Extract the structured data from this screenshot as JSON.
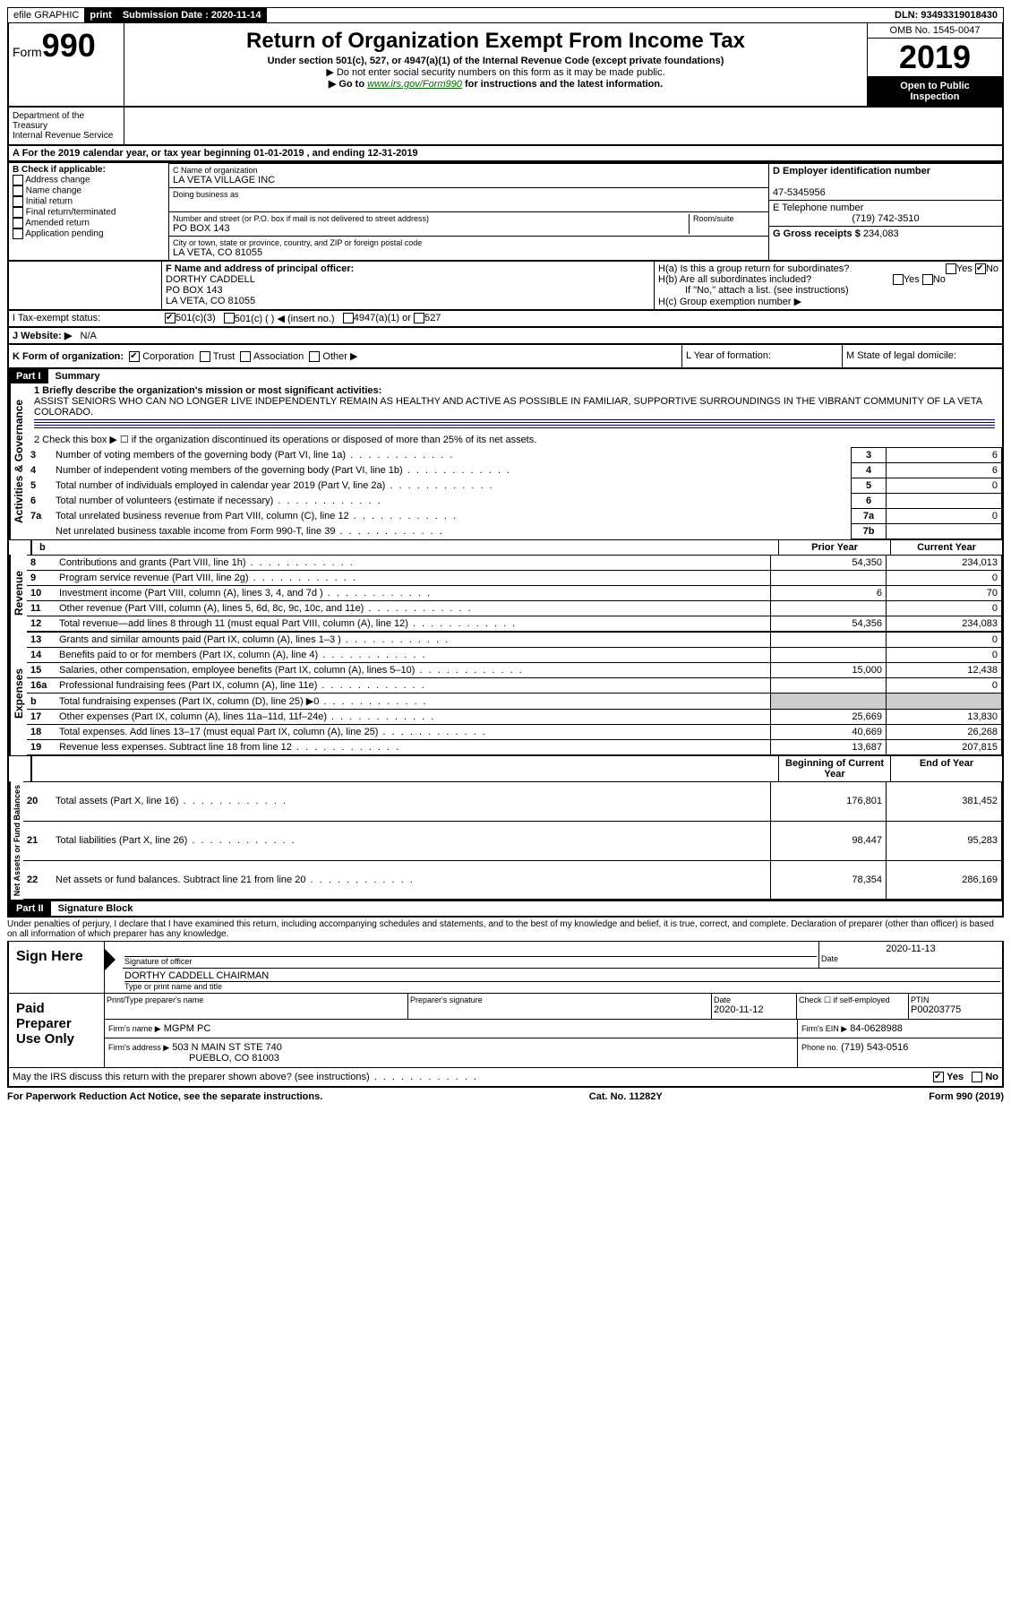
{
  "topbar": {
    "efile": "efile GRAPHIC",
    "print": "print",
    "submission_label": "Submission Date :",
    "submission_date": "2020-11-14",
    "dln_label": "DLN:",
    "dln": "93493319018430"
  },
  "header": {
    "form_prefix": "Form",
    "form_number": "990",
    "title": "Return of Organization Exempt From Income Tax",
    "subtitle": "Under section 501(c), 527, or 4947(a)(1) of the Internal Revenue Code (except private foundations)",
    "note1": "▶ Do not enter social security numbers on this form as it may be made public.",
    "note2_pre": "▶ Go to ",
    "note2_link": "www.irs.gov/Form990",
    "note2_post": " for instructions and the latest information.",
    "omb": "OMB No. 1545-0047",
    "year": "2019",
    "open_public1": "Open to Public",
    "open_public2": "Inspection",
    "dept1": "Department of the Treasury",
    "dept2": "Internal Revenue Service"
  },
  "section_a": "A For the 2019 calendar year, or tax year beginning 01-01-2019  , and ending 12-31-2019",
  "section_b": {
    "label": "B Check if applicable:",
    "items": [
      "Address change",
      "Name change",
      "Initial return",
      "Final return/terminated",
      "Amended return",
      "Application pending"
    ]
  },
  "section_c": {
    "name_label": "C Name of organization",
    "name": "LA VETA VILLAGE INC",
    "dba_label": "Doing business as",
    "addr_label": "Number and street (or P.O. box if mail is not delivered to street address)",
    "room_label": "Room/suite",
    "addr": "PO BOX 143",
    "city_label": "City or town, state or province, country, and ZIP or foreign postal code",
    "city": "LA VETA, CO  81055"
  },
  "section_d": {
    "label": "D Employer identification number",
    "ein": "47-5345956"
  },
  "section_e": {
    "label": "E Telephone number",
    "phone": "(719) 742-3510"
  },
  "section_g": {
    "label": "G Gross receipts $",
    "amount": "234,083"
  },
  "section_f": {
    "label": "F Name and address of principal officer:",
    "name": "DORTHY CADDELL",
    "addr1": "PO BOX 143",
    "addr2": "LA VETA, CO  81055"
  },
  "section_h": {
    "ha": "H(a)  Is this a group return for subordinates?",
    "hb": "H(b)  Are all subordinates included?",
    "hb_note": "If \"No,\" attach a list. (see instructions)",
    "hc": "H(c)  Group exemption number ▶"
  },
  "section_i": {
    "label": "I   Tax-exempt status:",
    "opt1": "501(c)(3)",
    "opt2": "501(c) (   ) ◀ (insert no.)",
    "opt3": "4947(a)(1) or",
    "opt4": "527"
  },
  "section_j": {
    "label": "J   Website: ▶",
    "value": "N/A"
  },
  "section_k": {
    "label": "K Form of organization:",
    "corp": "Corporation",
    "trust": "Trust",
    "assoc": "Association",
    "other": "Other ▶"
  },
  "section_l": "L Year of formation:",
  "section_m": "M State of legal domicile:",
  "part1": {
    "header": "Part I",
    "title": "Summary",
    "line1_label": "1  Briefly describe the organization's mission or most significant activities:",
    "mission": "ASSIST SENIORS WHO CAN NO LONGER LIVE INDEPENDENTLY REMAIN AS HEALTHY AND ACTIVE AS POSSIBLE IN FAMILIAR, SUPPORTIVE SURROUNDINGS IN THE VIBRANT COMMUNITY OF LA VETA COLORADO.",
    "line2": "2   Check this box ▶ ☐  if the organization discontinued its operations or disposed of more than 25% of its net assets.",
    "sidebar_ag": "Activities & Governance",
    "sidebar_rev": "Revenue",
    "sidebar_exp": "Expenses",
    "sidebar_net": "Net Assets or Fund Balances",
    "rows_ag": [
      {
        "n": "3",
        "t": "Number of voting members of the governing body (Part VI, line 1a)",
        "box": "3",
        "v": "6"
      },
      {
        "n": "4",
        "t": "Number of independent voting members of the governing body (Part VI, line 1b)",
        "box": "4",
        "v": "6"
      },
      {
        "n": "5",
        "t": "Total number of individuals employed in calendar year 2019 (Part V, line 2a)",
        "box": "5",
        "v": "0"
      },
      {
        "n": "6",
        "t": "Total number of volunteers (estimate if necessary)",
        "box": "6",
        "v": ""
      },
      {
        "n": "7a",
        "t": "Total unrelated business revenue from Part VIII, column (C), line 12",
        "box": "7a",
        "v": "0"
      },
      {
        "n": "",
        "t": "Net unrelated business taxable income from Form 990-T, line 39",
        "box": "7b",
        "v": ""
      }
    ],
    "prior_year": "Prior Year",
    "current_year": "Current Year",
    "rows_rev": [
      {
        "n": "8",
        "t": "Contributions and grants (Part VIII, line 1h)",
        "py": "54,350",
        "cy": "234,013"
      },
      {
        "n": "9",
        "t": "Program service revenue (Part VIII, line 2g)",
        "py": "",
        "cy": "0"
      },
      {
        "n": "10",
        "t": "Investment income (Part VIII, column (A), lines 3, 4, and 7d )",
        "py": "6",
        "cy": "70"
      },
      {
        "n": "11",
        "t": "Other revenue (Part VIII, column (A), lines 5, 6d, 8c, 9c, 10c, and 11e)",
        "py": "",
        "cy": "0"
      },
      {
        "n": "12",
        "t": "Total revenue—add lines 8 through 11 (must equal Part VIII, column (A), line 12)",
        "py": "54,356",
        "cy": "234,083"
      }
    ],
    "rows_exp": [
      {
        "n": "13",
        "t": "Grants and similar amounts paid (Part IX, column (A), lines 1–3 )",
        "py": "",
        "cy": "0"
      },
      {
        "n": "14",
        "t": "Benefits paid to or for members (Part IX, column (A), line 4)",
        "py": "",
        "cy": "0"
      },
      {
        "n": "15",
        "t": "Salaries, other compensation, employee benefits (Part IX, column (A), lines 5–10)",
        "py": "15,000",
        "cy": "12,438"
      },
      {
        "n": "16a",
        "t": "Professional fundraising fees (Part IX, column (A), line 11e)",
        "py": "",
        "cy": "0"
      },
      {
        "n": "b",
        "t": "Total fundraising expenses (Part IX, column (D), line 25) ▶0",
        "py": "shaded",
        "cy": "shaded"
      },
      {
        "n": "17",
        "t": "Other expenses (Part IX, column (A), lines 11a–11d, 11f–24e)",
        "py": "25,669",
        "cy": "13,830"
      },
      {
        "n": "18",
        "t": "Total expenses. Add lines 13–17 (must equal Part IX, column (A), line 25)",
        "py": "40,669",
        "cy": "26,268"
      },
      {
        "n": "19",
        "t": "Revenue less expenses. Subtract line 18 from line 12",
        "py": "13,687",
        "cy": "207,815"
      }
    ],
    "begin_year": "Beginning of Current Year",
    "end_year": "End of Year",
    "rows_net": [
      {
        "n": "20",
        "t": "Total assets (Part X, line 16)",
        "py": "176,801",
        "cy": "381,452"
      },
      {
        "n": "21",
        "t": "Total liabilities (Part X, line 26)",
        "py": "98,447",
        "cy": "95,283"
      },
      {
        "n": "22",
        "t": "Net assets or fund balances. Subtract line 21 from line 20",
        "py": "78,354",
        "cy": "286,169"
      }
    ]
  },
  "part2": {
    "header": "Part II",
    "title": "Signature Block",
    "declaration": "Under penalties of perjury, I declare that I have examined this return, including accompanying schedules and statements, and to the best of my knowledge and belief, it is true, correct, and complete. Declaration of preparer (other than officer) is based on all information of which preparer has any knowledge.",
    "sign_here": "Sign Here",
    "sig_officer": "Signature of officer",
    "date_label": "Date",
    "sig_date": "2020-11-13",
    "officer_name": "DORTHY CADDELL  CHAIRMAN",
    "type_name": "Type or print name and title",
    "paid_preparer": "Paid Preparer Use Only",
    "print_name_label": "Print/Type preparer's name",
    "prep_sig_label": "Preparer's signature",
    "prep_date_label": "Date",
    "prep_date": "2020-11-12",
    "check_self": "Check ☐  if self-employed",
    "ptin_label": "PTIN",
    "ptin": "P00203775",
    "firm_name_label": "Firm's name    ▶",
    "firm_name": "MGPM PC",
    "firm_ein_label": "Firm's EIN ▶",
    "firm_ein": "84-0628988",
    "firm_addr_label": "Firm's address ▶",
    "firm_addr1": "503 N MAIN ST STE 740",
    "firm_addr2": "PUEBLO, CO  81003",
    "phone_label": "Phone no.",
    "phone": "(719) 543-0516",
    "discuss": "May the IRS discuss this return with the preparer shown above? (see instructions)",
    "yes": "Yes",
    "no": "No"
  },
  "footer": {
    "left": "For Paperwork Reduction Act Notice, see the separate instructions.",
    "mid": "Cat. No. 11282Y",
    "right": "Form 990 (2019)"
  }
}
